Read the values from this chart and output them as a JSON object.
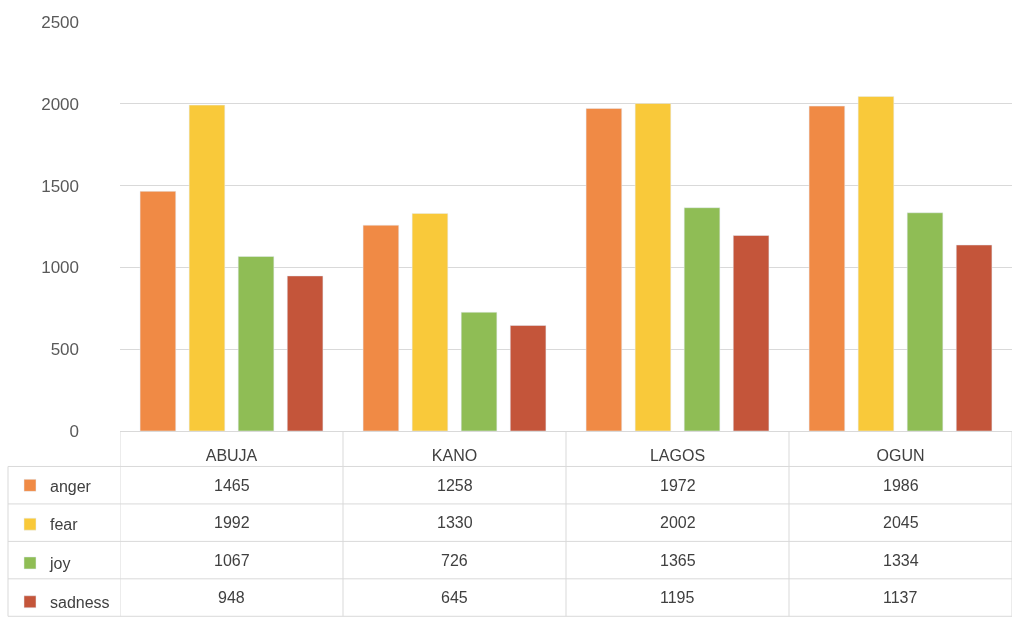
{
  "chart_data": {
    "type": "bar",
    "categories": [
      "ABUJA",
      "KANO",
      "LAGOS",
      "OGUN"
    ],
    "series": [
      {
        "name": "anger",
        "color": "#f08a45",
        "values": [
          1465,
          1258,
          1972,
          1986
        ]
      },
      {
        "name": "fear",
        "color": "#f9c93a",
        "values": [
          1992,
          1330,
          2002,
          2045
        ]
      },
      {
        "name": "joy",
        "color": "#8fbd55",
        "values": [
          1067,
          726,
          1365,
          1334
        ]
      },
      {
        "name": "sadness",
        "color": "#c4553a",
        "values": [
          948,
          645,
          1195,
          1137
        ]
      }
    ],
    "ylim": [
      0,
      2500
    ],
    "yticks": [
      0,
      500,
      1000,
      1500,
      2000,
      2500
    ],
    "grid": "y",
    "legend": "bottom left",
    "data_labels": true
  }
}
